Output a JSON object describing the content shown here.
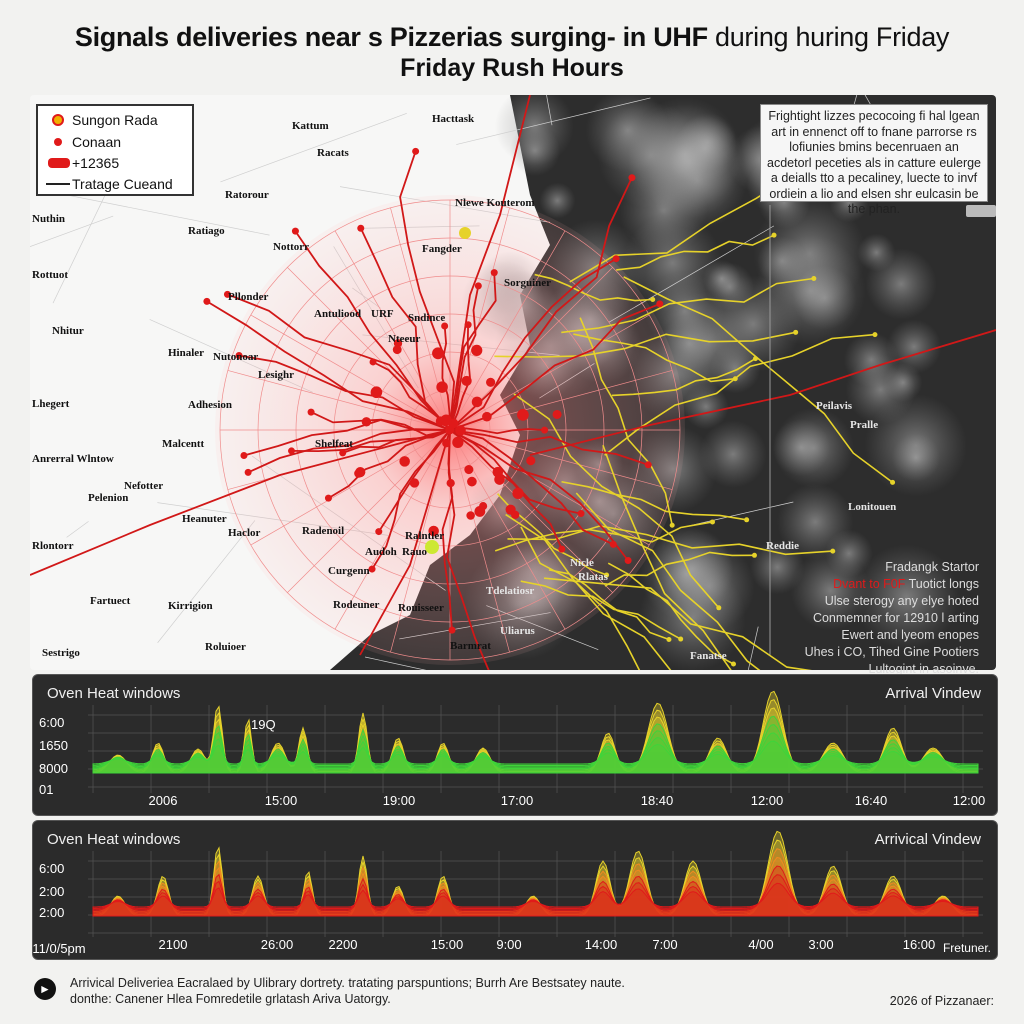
{
  "title": {
    "line1_bold": "Signals deliveries near s Pizzerias surging- in UHF",
    "line1_rest": " during huring Friday",
    "line2": "Friday Rush Hours"
  },
  "legend": {
    "items": [
      {
        "label": "Sungon Rada",
        "icon": "orange-dot-icon"
      },
      {
        "label": "Conaan",
        "icon": "red-dot-icon"
      },
      {
        "label": "+12365",
        "icon": "red-bar-icon"
      },
      {
        "label": "Tratage Cueand",
        "icon": "route-line-icon"
      }
    ]
  },
  "note": "Frightight lizzes pecocoing fi hal lgean art in ennenct off to fnane parrorse rs lofiunies bmins becenruaen an acdetorl peceties als in catture eulerge a deialls tto a pecaliney, luecte to invf ordiein a lio and elsen shr eulcasin be the phan.",
  "side_note": {
    "line1": "Fradangk Startor",
    "line2_red": "Dvant to F0F",
    "line2_rest": " Tuotict longs",
    "lines": [
      "Ulse sterogy any elye hoted",
      "Conmemner for 12910 l arting",
      "Ewert and lyeom enopes",
      "Uhes i CO,  Tihed Gine Pootiers",
      "Lultogint in asoinve."
    ]
  },
  "map_labels": {
    "west": [
      {
        "text": "Kattum"
      },
      {
        "text": "Hacttask"
      },
      {
        "text": "Racats"
      },
      {
        "text": "Ratorour"
      },
      {
        "text": "Nlewe Kouterom"
      },
      {
        "text": "Nuthin"
      },
      {
        "text": "Ratiago"
      },
      {
        "text": "Nottorr"
      },
      {
        "text": "Fangder"
      },
      {
        "text": "Rottuot"
      },
      {
        "text": "Sorguiner"
      },
      {
        "text": "Pllonder"
      },
      {
        "text": "Antuliood"
      },
      {
        "text": "URF"
      },
      {
        "text": "Sndince"
      },
      {
        "text": "Nhitur"
      },
      {
        "text": "Nteeur"
      },
      {
        "text": "Hinaler"
      },
      {
        "text": "Nutonoar"
      },
      {
        "text": "Lesighr"
      },
      {
        "text": "Lhegert"
      },
      {
        "text": "Adhesion"
      },
      {
        "text": "Anrerral Wlntow"
      },
      {
        "text": "Malcentt"
      },
      {
        "text": "Shelfeat"
      },
      {
        "text": "Nefotter"
      },
      {
        "text": "Pelenion"
      },
      {
        "text": "Rlontorr"
      },
      {
        "text": "Heanuter"
      },
      {
        "text": "Radenoil"
      },
      {
        "text": "Haclor"
      },
      {
        "text": "Ralntler"
      },
      {
        "text": "Rauo"
      },
      {
        "text": "Audoh"
      },
      {
        "text": "Curgenn"
      },
      {
        "text": "Fartuect"
      },
      {
        "text": "Kirrigion"
      },
      {
        "text": "Rodeuner"
      },
      {
        "text": "Rouisseer"
      },
      {
        "text": "Sestrigo"
      },
      {
        "text": "Roluioer"
      },
      {
        "text": "Barmrat"
      }
    ],
    "east": [
      {
        "text": "Peilavis"
      },
      {
        "text": "Pralle"
      },
      {
        "text": "Lonitouen"
      },
      {
        "text": "Reddie"
      },
      {
        "text": "Fanatse"
      },
      {
        "text": "Nicle"
      },
      {
        "text": "Rlatas"
      },
      {
        "text": "Tdelatiosr"
      },
      {
        "text": "Uliarus"
      }
    ]
  },
  "panel1": {
    "title": "Oven Heat windows",
    "right": "Arrival Vindew",
    "yticks": [
      "6:00",
      "1650",
      "8000",
      "01"
    ],
    "xticks": [
      "2006",
      "15:00",
      "19:00",
      "17:00",
      "18:40",
      "12:00",
      "16:40",
      "12:00"
    ],
    "annotation": "19Q"
  },
  "panel2": {
    "title": "Oven Heat windows",
    "right": "Arrivical Vindew",
    "yticks": [
      "6:00",
      "2:00",
      "2:00"
    ],
    "xticks": [
      "11/0/5pm",
      "2100",
      "26:00",
      "2200",
      "15:00",
      "9:00",
      "14:00",
      "7:00",
      "4/00",
      "3:00",
      "16:00"
    ],
    "corner": "Fretuner."
  },
  "footer": {
    "line1": "Arrivical Deliveriea Eacralaed by Ulibrary dortrety. tratating parspuntions; Burrh Are Bestsatey naute.",
    "line2": "donthe: Canener Hlea Fomredetile grlatash Ariva Uatorgy.",
    "right": "2026 of Pizzanaer:"
  },
  "colors": {
    "hotspot": "#e01a1a",
    "route_yellow": "#e6d22a",
    "panel_bg": "#2b2b2b",
    "green_peak": "#3fd43a"
  }
}
